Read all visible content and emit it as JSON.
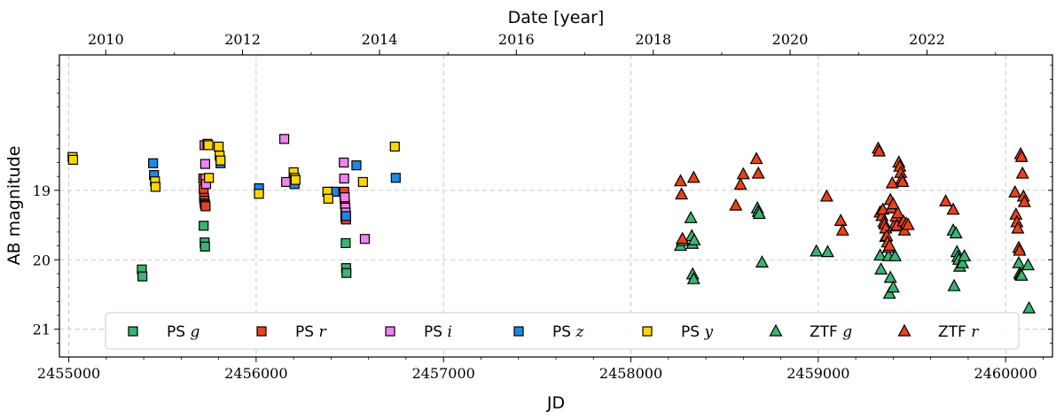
{
  "chart_data": {
    "type": "scatter",
    "xlabel": "JD",
    "ylabel": "AB magnitude",
    "top_xlabel": "Date [year]",
    "xlim": [
      2454950,
      2460250
    ],
    "ylim": [
      21.4,
      17.05
    ],
    "y_inverted": true,
    "grid": true,
    "xticks": [
      2455000,
      2456000,
      2457000,
      2458000,
      2459000,
      2460000
    ],
    "xtick_labels": [
      "2455000",
      "2456000",
      "2457000",
      "2458000",
      "2459000",
      "2460000"
    ],
    "yticks": [
      19,
      20,
      21
    ],
    "ytick_labels": [
      "19",
      "20",
      "21"
    ],
    "top_ticks": [
      {
        "jd": 2455197.5,
        "label": "2010"
      },
      {
        "jd": 2455927.5,
        "label": "2012"
      },
      {
        "jd": 2456658.5,
        "label": "2014"
      },
      {
        "jd": 2457388.5,
        "label": "2016"
      },
      {
        "jd": 2458119.5,
        "label": "2018"
      },
      {
        "jd": 2458849.5,
        "label": "2020"
      },
      {
        "jd": 2459580.5,
        "label": "2022"
      }
    ],
    "legend_position": "lower-center",
    "series": [
      {
        "name": "PS g",
        "label_main": "PS",
        "label_sub": "g",
        "marker": "square",
        "color": "#3cb371",
        "x": [
          2455390,
          2455393,
          2455720,
          2455725,
          2455727,
          2456478,
          2456480,
          2456482
        ],
        "y": [
          20.14,
          20.24,
          19.51,
          19.75,
          19.81,
          19.76,
          20.12,
          20.19
        ]
      },
      {
        "name": "PS r",
        "label_main": "PS",
        "label_sub": "r",
        "marker": "square",
        "color": "#e8421a",
        "x": [
          2455718,
          2455720,
          2455722,
          2455724,
          2455726,
          2455728,
          2455730,
          2456470,
          2456472,
          2456474,
          2456476,
          2456478,
          2456480
        ],
        "y": [
          18.83,
          18.98,
          19.11,
          19.15,
          19.19,
          19.21,
          19.23,
          19.02,
          19.12,
          19.2,
          19.38,
          19.4,
          19.42
        ]
      },
      {
        "name": "PS i",
        "label_main": "PS",
        "label_sub": "i",
        "marker": "square",
        "color": "#ee82ee",
        "x": [
          2455725,
          2455728,
          2455730,
          2455733,
          2456150,
          2456160,
          2456468,
          2456470,
          2456473,
          2456476,
          2456478,
          2456580
        ],
        "y": [
          18.35,
          18.62,
          18.83,
          18.91,
          18.26,
          18.88,
          18.6,
          18.83,
          19.1,
          19.25,
          19.32,
          19.7
        ]
      },
      {
        "name": "PS z",
        "label_main": "PS",
        "label_sub": "z",
        "marker": "square",
        "color": "#1e88e5",
        "x": [
          2455450,
          2455455,
          2455810,
          2456015,
          2456205,
          2456418,
          2456480,
          2456535,
          2456745
        ],
        "y": [
          18.61,
          18.78,
          18.61,
          18.97,
          18.91,
          19.02,
          19.37,
          18.64,
          18.82
        ]
      },
      {
        "name": "PS y",
        "label_main": "PS",
        "label_sub": "y",
        "marker": "square",
        "color": "#ffd700",
        "x": [
          2455020,
          2455023,
          2455460,
          2455463,
          2455740,
          2455745,
          2455748,
          2455800,
          2455805,
          2455810,
          2456015,
          2456200,
          2456205,
          2456210,
          2456380,
          2456385,
          2456570,
          2456740
        ],
        "y": [
          18.52,
          18.56,
          18.87,
          18.95,
          18.33,
          18.35,
          18.82,
          18.37,
          18.5,
          18.57,
          19.05,
          18.74,
          18.82,
          18.85,
          19.02,
          19.12,
          18.88,
          18.37
        ]
      },
      {
        "name": "ZTF g",
        "label_main": "ZTF",
        "label_sub": "g",
        "marker": "triangle",
        "color": "#3cb371",
        "x": [
          2458265,
          2458275,
          2458320,
          2458325,
          2458328,
          2458330,
          2458335,
          2458338,
          2458675,
          2458680,
          2458685,
          2458700,
          2458990,
          2459050,
          2459330,
          2459335,
          2459360,
          2459375,
          2459380,
          2459385,
          2459400,
          2459410,
          2459720,
          2459725,
          2459735,
          2459740,
          2459745,
          2459750,
          2459755,
          2459770,
          2459780,
          2460070,
          2460075,
          2460080,
          2460085,
          2460120,
          2460125
        ],
        "y": [
          19.8,
          19.73,
          19.4,
          19.66,
          19.77,
          20.21,
          20.28,
          19.72,
          19.26,
          19.31,
          19.34,
          20.04,
          19.88,
          19.89,
          19.94,
          20.14,
          19.67,
          19.95,
          20.49,
          20.26,
          20.4,
          19.95,
          19.58,
          20.38,
          19.62,
          19.89,
          19.96,
          20.0,
          20.1,
          20.05,
          19.95,
          20.05,
          20.2,
          20.22,
          20.23,
          20.08,
          20.7
        ]
      },
      {
        "name": "ZTF r",
        "label_main": "ZTF",
        "label_sub": "r",
        "marker": "triangle",
        "color": "#e8421a",
        "x": [
          2458265,
          2458270,
          2458275,
          2458335,
          2458560,
          2458585,
          2458600,
          2458670,
          2458680,
          2459045,
          2459120,
          2459130,
          2459320,
          2459325,
          2459330,
          2459340,
          2459345,
          2459350,
          2459355,
          2459360,
          2459365,
          2459370,
          2459375,
          2459380,
          2459385,
          2459390,
          2459395,
          2459400,
          2459405,
          2459410,
          2459415,
          2459420,
          2459425,
          2459430,
          2459435,
          2459440,
          2459445,
          2459450,
          2459455,
          2459460,
          2459470,
          2459480,
          2459680,
          2459720,
          2460050,
          2460055,
          2460060,
          2460065,
          2460070,
          2460075,
          2460080,
          2460085,
          2460090,
          2460095,
          2460100
        ],
        "y": [
          18.87,
          19.06,
          19.7,
          18.82,
          19.22,
          18.92,
          18.77,
          18.55,
          18.76,
          19.09,
          19.44,
          19.58,
          18.4,
          18.44,
          19.32,
          19.37,
          19.28,
          19.46,
          19.49,
          19.55,
          19.66,
          19.75,
          19.83,
          19.8,
          19.14,
          19.26,
          18.9,
          19.2,
          19.52,
          19.48,
          19.38,
          19.51,
          19.33,
          18.6,
          18.66,
          18.75,
          18.84,
          18.88,
          19.45,
          19.58,
          19.48,
          19.5,
          19.16,
          19.28,
          19.03,
          19.35,
          19.46,
          19.55,
          19.83,
          19.87,
          18.48,
          18.52,
          18.76,
          19.09,
          19.17
        ]
      }
    ]
  }
}
